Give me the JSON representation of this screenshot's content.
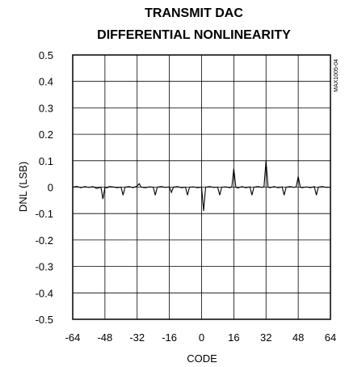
{
  "chart_data": {
    "type": "line",
    "title_lines": [
      "TRANSMIT DAC",
      "DIFFERENTIAL NONLINEARITY"
    ],
    "xlabel": "CODE",
    "ylabel": "DNL (LSB)",
    "xlim": [
      -64,
      64
    ],
    "ylim": [
      -0.5,
      0.5
    ],
    "xticks": [
      -64,
      -48,
      -32,
      -16,
      0,
      16,
      32,
      48,
      64
    ],
    "yticks": [
      0.5,
      0.4,
      0.3,
      0.2,
      0.1,
      0,
      -0.1,
      -0.2,
      -0.3,
      -0.4,
      -0.5
    ],
    "ytick_labels": [
      "0.5",
      "0.4",
      "0.3",
      "0.2",
      "0.1",
      "0",
      "-0.1",
      "-0.2",
      "-0.3",
      "-0.4",
      "-0.5"
    ],
    "grid": true,
    "annotation": "MAX1005-04",
    "series": [
      {
        "x": [
          -64,
          -62,
          -60,
          -58,
          -56,
          -54,
          -52,
          -50,
          -49,
          -48,
          -47,
          -46,
          -44,
          -42,
          -40,
          -39,
          -38,
          -36,
          -34,
          -32,
          -31,
          -30,
          -28,
          -26,
          -24,
          -23,
          -22,
          -20,
          -18,
          -16,
          -15,
          -14,
          -12,
          -10,
          -8,
          -7,
          -6,
          -4,
          -2,
          0,
          1,
          2,
          4,
          6,
          8,
          9,
          10,
          12,
          14,
          15,
          16,
          17,
          18,
          20,
          22,
          24,
          25,
          26,
          28,
          30,
          31,
          32,
          33,
          34,
          36,
          38,
          40,
          41,
          42,
          44,
          46,
          47,
          48,
          49,
          50,
          52,
          54,
          56,
          57,
          58,
          60,
          62,
          64
        ],
        "y": [
          0,
          0.003,
          -0.002,
          0.002,
          -0.001,
          0.002,
          -0.005,
          0,
          -0.045,
          0,
          -0.003,
          0.002,
          0.001,
          -0.002,
          0,
          -0.03,
          0,
          0.002,
          -0.002,
          0.004,
          0.013,
          0,
          -0.002,
          0.001,
          0,
          -0.03,
          0,
          0.002,
          -0.001,
          0.001,
          -0.02,
          0,
          0.002,
          -0.002,
          0,
          -0.03,
          0,
          0.001,
          -0.002,
          0,
          -0.09,
          0,
          0.002,
          -0.001,
          0,
          -0.03,
          0,
          0.001,
          -0.002,
          0,
          0.07,
          0,
          -0.003,
          0.002,
          -0.002,
          0.001,
          -0.03,
          0,
          0.002,
          -0.001,
          0.002,
          0.1,
          0,
          -0.002,
          0.002,
          -0.002,
          0.001,
          -0.03,
          0,
          0.002,
          -0.001,
          0.002,
          0.04,
          0,
          -0.002,
          0.001,
          -0.002,
          0.002,
          -0.03,
          0,
          0.002,
          -0.001,
          0
        ]
      }
    ]
  }
}
